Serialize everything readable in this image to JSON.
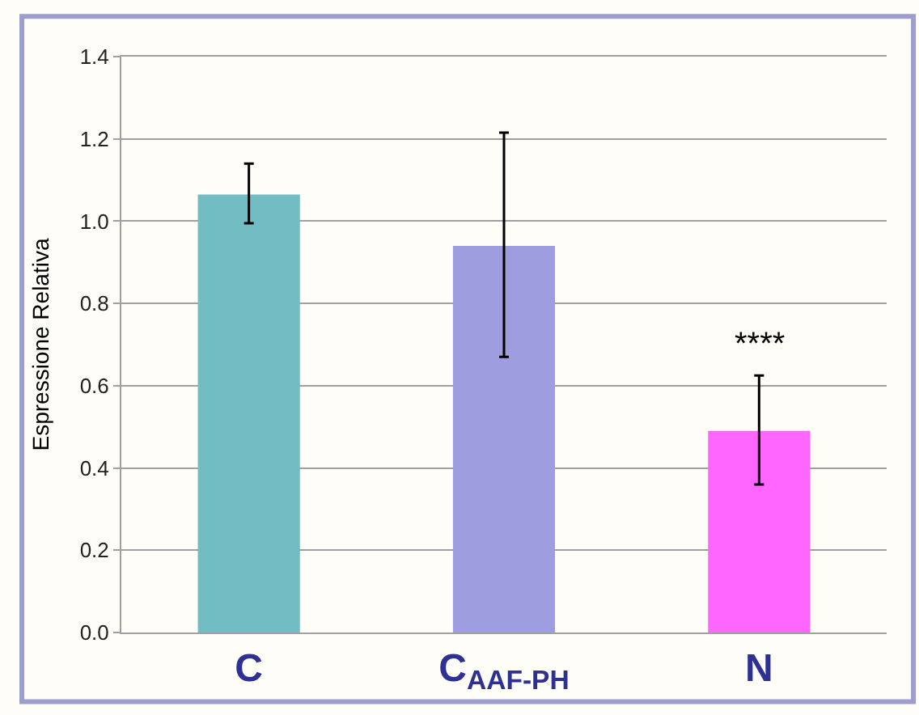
{
  "chart_data": {
    "type": "bar",
    "ylabel": "Espressione Relativa",
    "categories": [
      "C",
      "C$_{AAF-PH}$",
      "N"
    ],
    "values": [
      1.065,
      0.94,
      0.49
    ],
    "colors": [
      "#72bcc4",
      "#9d9ddf",
      "#ff66ff"
    ],
    "errors": [
      [
        0.995,
        1.14
      ],
      [
        0.67,
        1.215
      ],
      [
        0.36,
        0.625
      ]
    ],
    "ylim": [
      0,
      1.4
    ],
    "yticks": [
      {
        "value": 0,
        "label": "0.0"
      },
      {
        "value": 0.2,
        "label": "0.2"
      },
      {
        "value": 0.4,
        "label": "0.4"
      },
      {
        "value": 0.6,
        "label": "0.6"
      },
      {
        "value": 0.8,
        "label": "0.8"
      },
      {
        "value": 1.0,
        "label": "1.0"
      },
      {
        "value": 1.2,
        "label": "1.2"
      },
      {
        "value": 1.4,
        "label": "1.4"
      }
    ],
    "annotations": [
      "****"
    ],
    "grid": "y"
  }
}
